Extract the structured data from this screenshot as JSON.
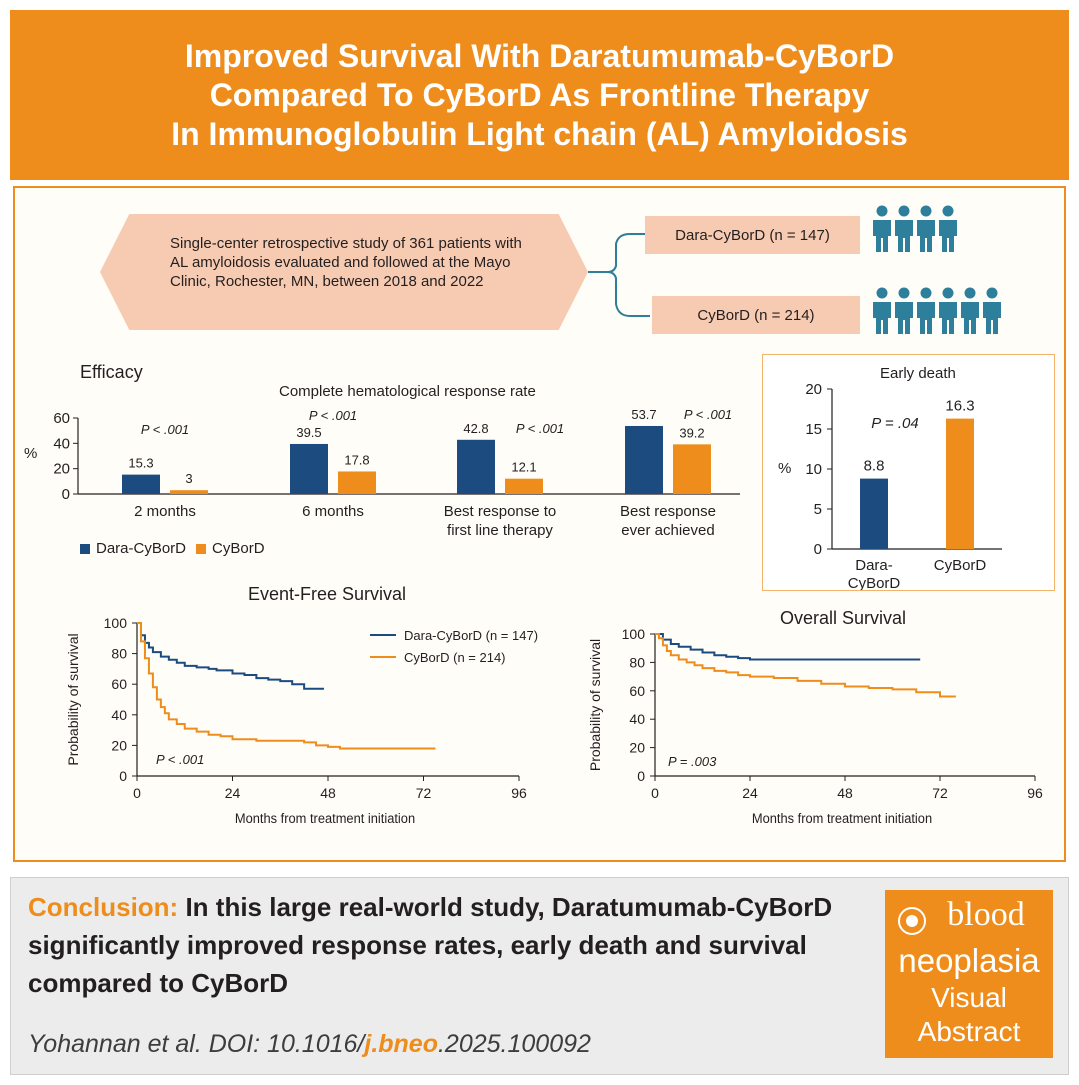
{
  "title": {
    "line1": "Improved Survival With Daratumumab-CyBorD",
    "line2": "Compared To CyBorD As Frontline Therapy",
    "line3": "In Immunoglobulin Light chain (AL) Amyloidosis"
  },
  "study": {
    "description": "Single-center retrospective study of 361 patients with AL amyloidosis evaluated and followed at the Mayo Clinic, Rochester, MN, between 2018 and 2022",
    "arm1": "Dara-CyBorD (n = 147)",
    "arm2": "CyBorD (n = 214)",
    "arm1_icon": "people-icon",
    "arm1_icon_count": 4,
    "arm2_icon_count": 6
  },
  "colors": {
    "orange": "#ee8d1c",
    "navy": "#1b4b7f",
    "peach": "#f7cbb2",
    "teal": "#2d7f9b"
  },
  "efficacy": {
    "section_title": "Efficacy",
    "chart_title": "Complete hematological response rate",
    "y_label": "%",
    "legend_dara": "Dara-CyBorD",
    "legend_cybord": "CyBorD"
  },
  "early_death": {
    "title": "Early death",
    "y_label": "%",
    "p_value": "P = .04",
    "cat1": "Dara-CyBorD",
    "cat2": "CyBorD"
  },
  "efs": {
    "title": "Event-Free Survival",
    "y_label": "Probability of survival",
    "x_label": "Months from treatment initiation",
    "p_value": "P < .001",
    "legend_dara": "Dara-CyBorD (n = 147)",
    "legend_cybord": "CyBorD (n = 214)"
  },
  "os": {
    "title": "Overall Survival",
    "y_label": "Probability of survival",
    "x_label": "Months from treatment initiation",
    "p_value": "P = .003"
  },
  "conclusion": {
    "label": "Conclusion:",
    "text": "In this large real-world study, Daratumumab-CyBorD significantly improved response rates, early death and survival compared to CyBorD"
  },
  "citation": {
    "prefix": "Yohannan et al. DOI: 10.1016/",
    "highlight": "j.bneo",
    "suffix": ".2025.100092"
  },
  "brand": {
    "top": "blood",
    "middle": "neoplasia",
    "visual": "Visual",
    "abstract": "Abstract"
  },
  "chart_data": [
    {
      "type": "bar",
      "title": "Complete hematological response rate",
      "ylabel": "%",
      "ylim": [
        0,
        60
      ],
      "yticks": [
        0,
        20,
        40,
        60
      ],
      "categories": [
        "2 months",
        "6 months",
        "Best response to first line therapy",
        "Best response ever achieved"
      ],
      "category_lines": [
        [
          "2 months"
        ],
        [
          "6 months"
        ],
        [
          "Best response to",
          "first line therapy"
        ],
        [
          "Best response",
          "ever achieved"
        ]
      ],
      "series": [
        {
          "name": "Dara-CyBorD",
          "values": [
            15.3,
            39.5,
            42.8,
            53.7
          ],
          "labels": [
            "15.3",
            "39.5",
            "42.8",
            "53.7"
          ],
          "color": "#1b4b7f"
        },
        {
          "name": "CyBorD",
          "values": [
            3,
            17.8,
            12.1,
            39.2
          ],
          "labels": [
            "3",
            "17.8",
            "12.1",
            "39.2"
          ],
          "color": "#ee8d1c"
        }
      ],
      "p_values": [
        "P < .001",
        "P < .001",
        "P < .001",
        "P < .001"
      ],
      "legend": "bottom-left"
    },
    {
      "type": "bar",
      "title": "Early death",
      "ylabel": "%",
      "ylim": [
        0,
        20
      ],
      "yticks": [
        0,
        5,
        10,
        15,
        20
      ],
      "categories": [
        "Dara-CyBorD",
        "CyBorD"
      ],
      "values": [
        8.8,
        16.3
      ],
      "labels": [
        "8.8",
        "16.3"
      ],
      "colors": [
        "#1b4b7f",
        "#ee8d1c"
      ],
      "annotation": "P = .04"
    },
    {
      "type": "line",
      "title": "Event-Free Survival",
      "xlabel": "Months from treatment initiation",
      "ylabel": "Probability of survival",
      "xlim": [
        0,
        96
      ],
      "ylim": [
        0,
        100
      ],
      "xticks": [
        0,
        24,
        48,
        72,
        96
      ],
      "yticks": [
        0,
        20,
        40,
        60,
        80,
        100
      ],
      "series": [
        {
          "name": "Dara-CyBorD (n = 147)",
          "color": "#1b4b7f",
          "x": [
            0,
            1,
            2,
            3,
            4,
            6,
            8,
            10,
            12,
            15,
            18,
            20,
            24,
            27,
            30,
            33,
            36,
            39,
            42,
            45,
            47
          ],
          "y": [
            100,
            92,
            87,
            84,
            81,
            78,
            76,
            74,
            72,
            71,
            70,
            69,
            67,
            66,
            64,
            63,
            62,
            60,
            57,
            57,
            57
          ]
        },
        {
          "name": "CyBorD (n = 214)",
          "color": "#ee8d1c",
          "x": [
            0,
            1,
            2,
            3,
            4,
            5,
            6,
            7,
            8,
            10,
            12,
            15,
            18,
            21,
            24,
            30,
            36,
            42,
            45,
            48,
            51,
            60,
            72,
            75
          ],
          "y": [
            100,
            88,
            77,
            67,
            58,
            50,
            45,
            41,
            37,
            34,
            31,
            29,
            27,
            26,
            24,
            23,
            23,
            22,
            20,
            19,
            18,
            18,
            18,
            18
          ]
        }
      ],
      "annotation": "P < .001",
      "legend": "top-right"
    },
    {
      "type": "line",
      "title": "Overall Survival",
      "xlabel": "Months from treatment initiation",
      "ylabel": "Probability of survival",
      "xlim": [
        0,
        96
      ],
      "ylim": [
        0,
        100
      ],
      "xticks": [
        0,
        24,
        48,
        72,
        96
      ],
      "yticks": [
        0,
        20,
        40,
        60,
        80,
        100
      ],
      "series": [
        {
          "name": "Dara-CyBorD (n = 147)",
          "color": "#1b4b7f",
          "x": [
            0,
            2,
            4,
            6,
            9,
            12,
            15,
            18,
            21,
            24,
            30,
            36,
            48,
            60,
            67
          ],
          "y": [
            100,
            96,
            93,
            91,
            89,
            87,
            85,
            84,
            83,
            82,
            82,
            82,
            82,
            82,
            82
          ]
        },
        {
          "name": "CyBorD (n = 214)",
          "color": "#ee8d1c",
          "x": [
            0,
            1,
            2,
            3,
            4,
            6,
            8,
            10,
            12,
            15,
            18,
            21,
            24,
            30,
            36,
            42,
            48,
            54,
            60,
            66,
            72,
            76
          ],
          "y": [
            100,
            97,
            92,
            88,
            85,
            82,
            80,
            78,
            76,
            74,
            73,
            71,
            70,
            69,
            67,
            65,
            63,
            62,
            61,
            59,
            56,
            56
          ]
        }
      ],
      "annotation": "P = .003"
    }
  ]
}
